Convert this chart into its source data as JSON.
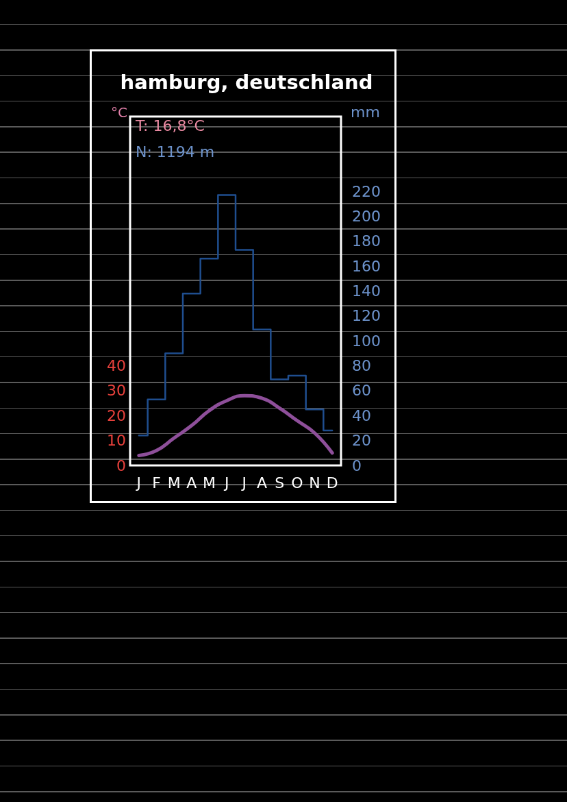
{
  "chart_data": {
    "type": "step",
    "title": "hamburg, deutschland",
    "ylabel": "°C",
    "y2label": "mm",
    "annotations": [
      "T: 16,8°C",
      "N: 1194 m"
    ],
    "categories": [
      "J",
      "F",
      "M",
      "A",
      "M",
      "J",
      "J",
      "A",
      "S",
      "O",
      "N",
      "D"
    ],
    "series": [
      {
        "axis": "y2",
        "color": "#1f4e8f",
        "values": [
          24,
          53,
          90,
          138,
          166,
          217,
          173,
          109,
          69,
          72,
          45,
          28
        ]
      },
      {
        "type": "line",
        "color": "#8e4f9a",
        "values": [
          4,
          6,
          11,
          16,
          22,
          26,
          28,
          27,
          23,
          18,
          13,
          5
        ]
      }
    ],
    "ylim": [
      0,
      140
    ],
    "yticks": [
      0,
      10,
      20,
      30,
      40
    ],
    "y2lim": [
      0,
      280
    ],
    "y2ticks": [
      0,
      20,
      40,
      60,
      80,
      100,
      120,
      140,
      160,
      180,
      200,
      220
    ],
    "marker": "none",
    "line_style": "solid",
    "grid": false
  }
}
